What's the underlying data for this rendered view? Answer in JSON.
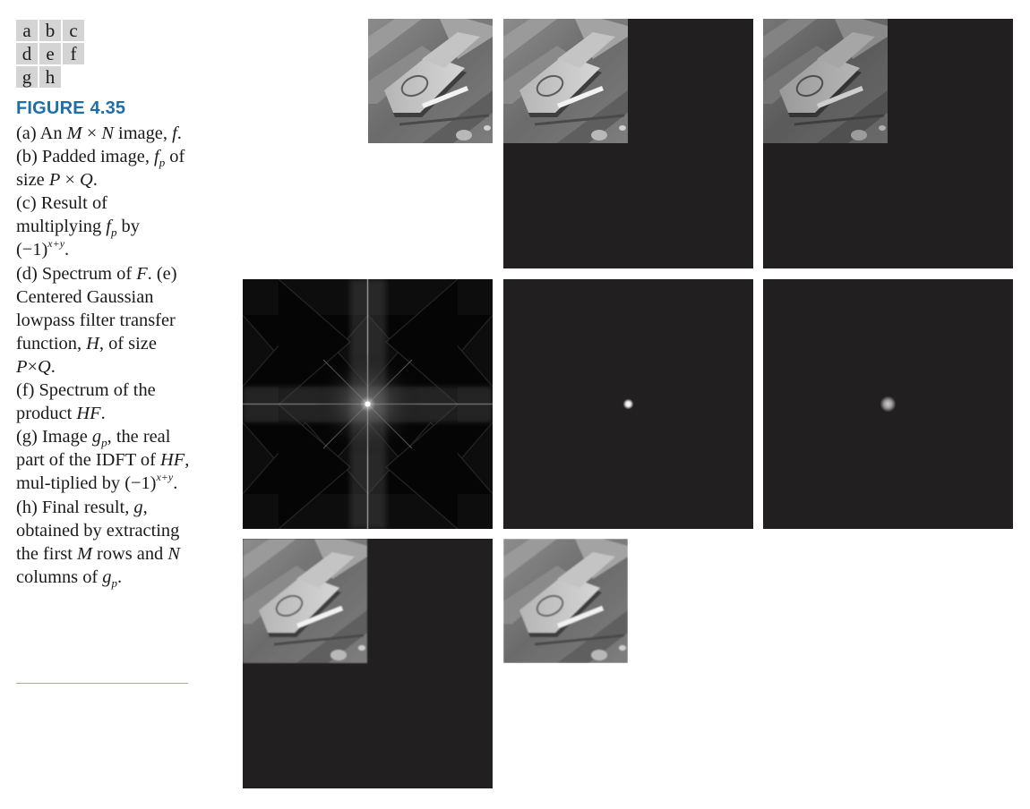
{
  "panel_key": [
    "a",
    "b",
    "c",
    "d",
    "e",
    "f",
    "g",
    "h"
  ],
  "figure": {
    "label": "FIGURE 4.35",
    "caption": {
      "a": [
        "(a) An ",
        "M",
        " × ",
        "N",
        " image, ",
        "f",
        "."
      ],
      "b": [
        "(b) Padded image, ",
        "f",
        "p",
        " of size ",
        "P",
        " × ",
        "Q",
        "."
      ],
      "c": [
        "(c) Result of multiplying ",
        "f",
        "p",
        " by (−1)",
        "x+y",
        "."
      ],
      "d": [
        "(d) Spectrum of ",
        "F",
        "."
      ],
      "e": [
        " (e) Centered Gaussian lowpass filter transfer function, ",
        "H",
        ", of size ",
        "P",
        "×",
        "Q",
        "."
      ],
      "f": [
        "(f) Spectrum of the product ",
        "HF",
        "."
      ],
      "g": [
        "(g) Image ",
        "g",
        "p",
        ", the real part of the IDFT of ",
        "HF",
        ", mul-tiplied by (−1)",
        "x+y",
        "."
      ],
      "h": [
        "(h) Final result, ",
        "g",
        ", obtained by extracting the first ",
        "M",
        " rows and ",
        "N",
        " columns of ",
        "g",
        "p",
        "."
      ]
    }
  },
  "colors": {
    "accent": "#1d6fa5",
    "panel_dark": "#211f20",
    "key_bg": "#d4d4d4"
  }
}
